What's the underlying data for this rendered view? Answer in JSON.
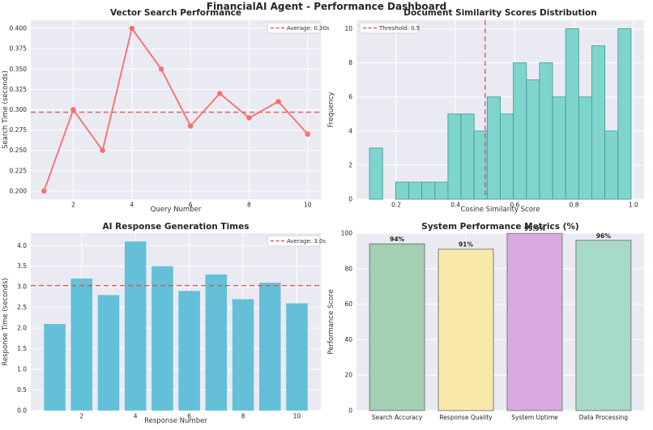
{
  "figure": {
    "title": "FinancialAI Agent - Performance Dashboard",
    "background": "#ffffff",
    "plot_background": "#EAEAF2",
    "grid_color": "#ffffff",
    "text_color": "#262626",
    "tick_color": "#444444"
  },
  "chart_data": [
    {
      "type": "line",
      "title": "Vector Search Performance",
      "xlabel": "Query Number",
      "ylabel": "Search Time (seconds)",
      "x": [
        1,
        2,
        3,
        4,
        5,
        6,
        7,
        8,
        9,
        10
      ],
      "values": [
        0.2,
        0.3,
        0.25,
        0.4,
        0.35,
        0.28,
        0.32,
        0.29,
        0.31,
        0.27
      ],
      "color": "#FF6B6B",
      "marker": "circle",
      "average": 0.297,
      "average_label": "Average: 0.30s",
      "average_color": "#E04B4B",
      "xticks": [
        "2",
        "4",
        "6",
        "8",
        "10"
      ],
      "yticks": [
        "0.200",
        "0.225",
        "0.250",
        "0.275",
        "0.300",
        "0.325",
        "0.350",
        "0.375",
        "0.400"
      ],
      "xlim": [
        0.55,
        10.45
      ],
      "ylim": [
        0.19,
        0.41
      ],
      "legend_position": "top-right",
      "grid": true
    },
    {
      "type": "histogram",
      "title": "Document Similarity Scores Distribution",
      "xlabel": "Cosine Similarity Score",
      "ylabel": "Frequency",
      "bin_start": 0.11,
      "bin_width": 0.0441,
      "counts": [
        3,
        0,
        1,
        1,
        1,
        1,
        5,
        5,
        4,
        6,
        5,
        8,
        7,
        8,
        6,
        10,
        6,
        9,
        4,
        10
      ],
      "color": "#7DD5CE",
      "edge_color": "#4F9B96",
      "threshold": 0.5,
      "threshold_label": "Threshold: 0.5",
      "threshold_color": "#E04B4B",
      "xticks": [
        "0.2",
        "0.4",
        "0.6",
        "0.8",
        "1.0"
      ],
      "yticks": [
        "0",
        "2",
        "4",
        "6",
        "8",
        "10"
      ],
      "xlim": [
        0.066,
        1.036
      ],
      "ylim": [
        0,
        10.5
      ],
      "legend_position": "top-left",
      "grid": true
    },
    {
      "type": "bar",
      "title": "AI Response Generation Times",
      "xlabel": "Response Number",
      "ylabel": "Response Time (seconds)",
      "x": [
        1,
        2,
        3,
        4,
        5,
        6,
        7,
        8,
        9,
        10
      ],
      "values": [
        2.1,
        3.2,
        2.8,
        4.1,
        3.5,
        2.9,
        3.3,
        2.7,
        3.1,
        2.6
      ],
      "bar_width": 0.8,
      "color": "#63C0D8",
      "average": 3.03,
      "average_label": "Average: 3.0s",
      "average_color": "#E04B4B",
      "xticks": [
        "2",
        "4",
        "6",
        "8",
        "10"
      ],
      "yticks": [
        "0.0",
        "0.5",
        "1.0",
        "1.5",
        "2.0",
        "2.5",
        "3.0",
        "3.5",
        "4.0"
      ],
      "xlim": [
        0.11,
        10.89
      ],
      "ylim": [
        0,
        4.3
      ],
      "legend_position": "top-right",
      "grid": true
    },
    {
      "type": "category_bar",
      "title": "System Performance Metrics (%)",
      "xlabel": "",
      "ylabel": "Performance Score",
      "categories": [
        "Search Accuracy",
        "Response Quality",
        "System Uptime",
        "Data Processing"
      ],
      "values": [
        94,
        91,
        99.9,
        96
      ],
      "bar_labels": [
        "94%",
        "91%",
        "99.9%",
        "96%"
      ],
      "colors": [
        "#A4CFB2",
        "#F8E9AB",
        "#D9AADF",
        "#A7DAC7"
      ],
      "edge_color": "#707070",
      "bar_width": 0.8,
      "yticks": [
        "0",
        "20",
        "40",
        "60",
        "80",
        "100"
      ],
      "xlim": [
        -0.59,
        3.59
      ],
      "ylim": [
        0,
        100
      ],
      "grid": true
    }
  ]
}
